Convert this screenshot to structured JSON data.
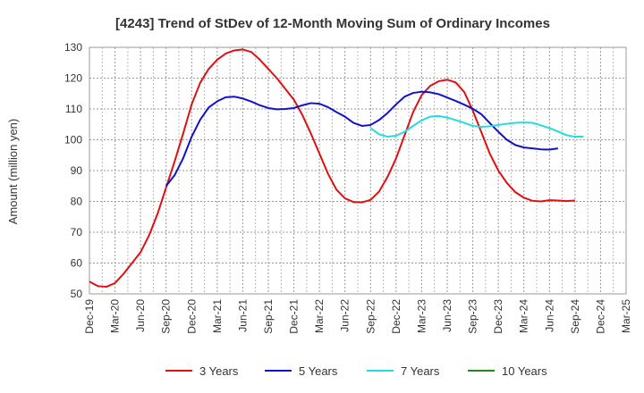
{
  "chart_data": {
    "type": "line",
    "title": "[4243]  Trend of StDev of 12-Month Moving Sum of Ordinary Incomes",
    "xlabel": "",
    "ylabel": "Amount (million yen)",
    "ylim": [
      50,
      130
    ],
    "yticks": [
      50,
      60,
      70,
      80,
      90,
      100,
      110,
      120,
      130
    ],
    "grid": true,
    "legend_position": "bottom",
    "x_tick_labels": [
      "Dec-19",
      "Mar-20",
      "Jun-20",
      "Sep-20",
      "Dec-20",
      "Mar-21",
      "Jun-21",
      "Sep-21",
      "Dec-21",
      "Mar-22",
      "Jun-22",
      "Sep-22",
      "Dec-22",
      "Mar-23",
      "Jun-23",
      "Sep-23",
      "Dec-23",
      "Mar-24",
      "Jun-24",
      "Sep-24",
      "Dec-24",
      "Mar-25"
    ],
    "x_start": "Dec-19",
    "series": [
      {
        "name": "3 Years",
        "color": "#dd1111",
        "start_month_index": 0,
        "values": [
          54,
          52.5,
          52.3,
          53.5,
          56.5,
          60,
          63.5,
          69,
          76,
          84.5,
          93,
          102,
          111.5,
          118.5,
          123,
          126,
          128,
          129,
          129.3,
          128.5,
          126,
          123,
          120,
          116.5,
          113,
          108,
          102,
          95.5,
          89,
          83.8,
          81,
          79.8,
          79.7,
          80.5,
          83.2,
          88,
          94,
          101.5,
          109,
          114.5,
          117.5,
          119,
          119.5,
          118.6,
          115.5,
          109.5,
          102.5,
          95.5,
          90,
          86,
          83,
          81.2,
          80.2,
          80,
          80.4,
          80.3,
          80.1,
          80.3
        ]
      },
      {
        "name": "5 Years",
        "color": "#1111cc",
        "start_month_index": 9,
        "values": [
          85,
          88.5,
          94,
          101,
          106.5,
          110.5,
          112.5,
          113.8,
          114,
          113.4,
          112.4,
          111.2,
          110.3,
          109.9,
          110,
          110.3,
          111.2,
          111.9,
          111.7,
          110.6,
          109,
          107.5,
          105.5,
          104.5,
          104.8,
          106.4,
          108.7,
          111.5,
          114,
          115.2,
          115.6,
          115.4,
          114.8,
          113.7,
          112.6,
          111.4,
          110.1,
          108.3,
          105.4,
          102.6,
          100,
          98.3,
          97.5,
          97.2,
          96.9,
          96.8,
          97.2
        ]
      },
      {
        "name": "7 Years",
        "color": "#22dddd",
        "start_month_index": 33,
        "values": [
          103.8,
          101.8,
          101,
          101.3,
          102.6,
          104.5,
          106.3,
          107.5,
          107.7,
          107.2,
          106.4,
          105.5,
          104.5,
          104.2,
          104.4,
          104.8,
          105.2,
          105.5,
          105.6,
          105.5,
          104.7,
          103.8,
          102.7,
          101.5,
          101,
          101
        ]
      },
      {
        "name": "10 Years",
        "color": "#228822",
        "start_month_index": 0,
        "values": []
      }
    ]
  }
}
